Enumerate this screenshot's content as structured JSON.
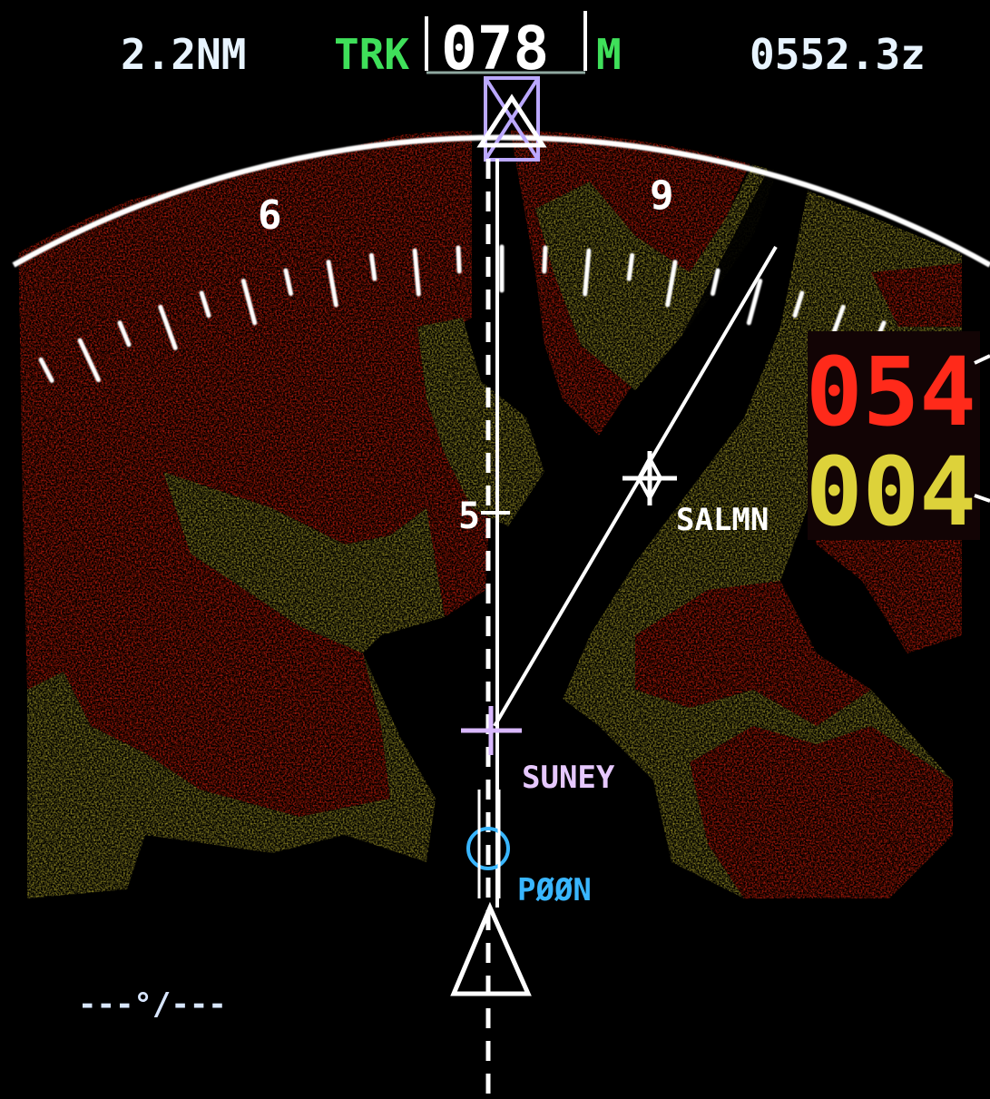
{
  "header": {
    "range_label": "2.2NM",
    "track_label": "TRK",
    "heading_value": "078",
    "heading_ref": "M",
    "time_utc": "0552.3z"
  },
  "compass": {
    "label_6": "6",
    "label_9": "9"
  },
  "wind": {
    "text": "---°/---"
  },
  "side_readout": {
    "top_value": "054",
    "bottom_value": "004"
  },
  "route": {
    "distance_mark": "5",
    "waypoints": [
      {
        "name": "SALMN"
      },
      {
        "name": "SUNEY"
      },
      {
        "name": "PØØN"
      }
    ]
  },
  "colors": {
    "terrain_red": "#e8220e",
    "terrain_yellow": "#b8ad2c",
    "compass_white": "#ffffff",
    "track_green": "#3fe05a",
    "waypoint_salmn": "#ffffff",
    "waypoint_suney": "#e6c8ff",
    "waypoint_poon": "#39b6ff",
    "readout_red": "#ff2a1a",
    "readout_yellow": "#ddd23a"
  }
}
